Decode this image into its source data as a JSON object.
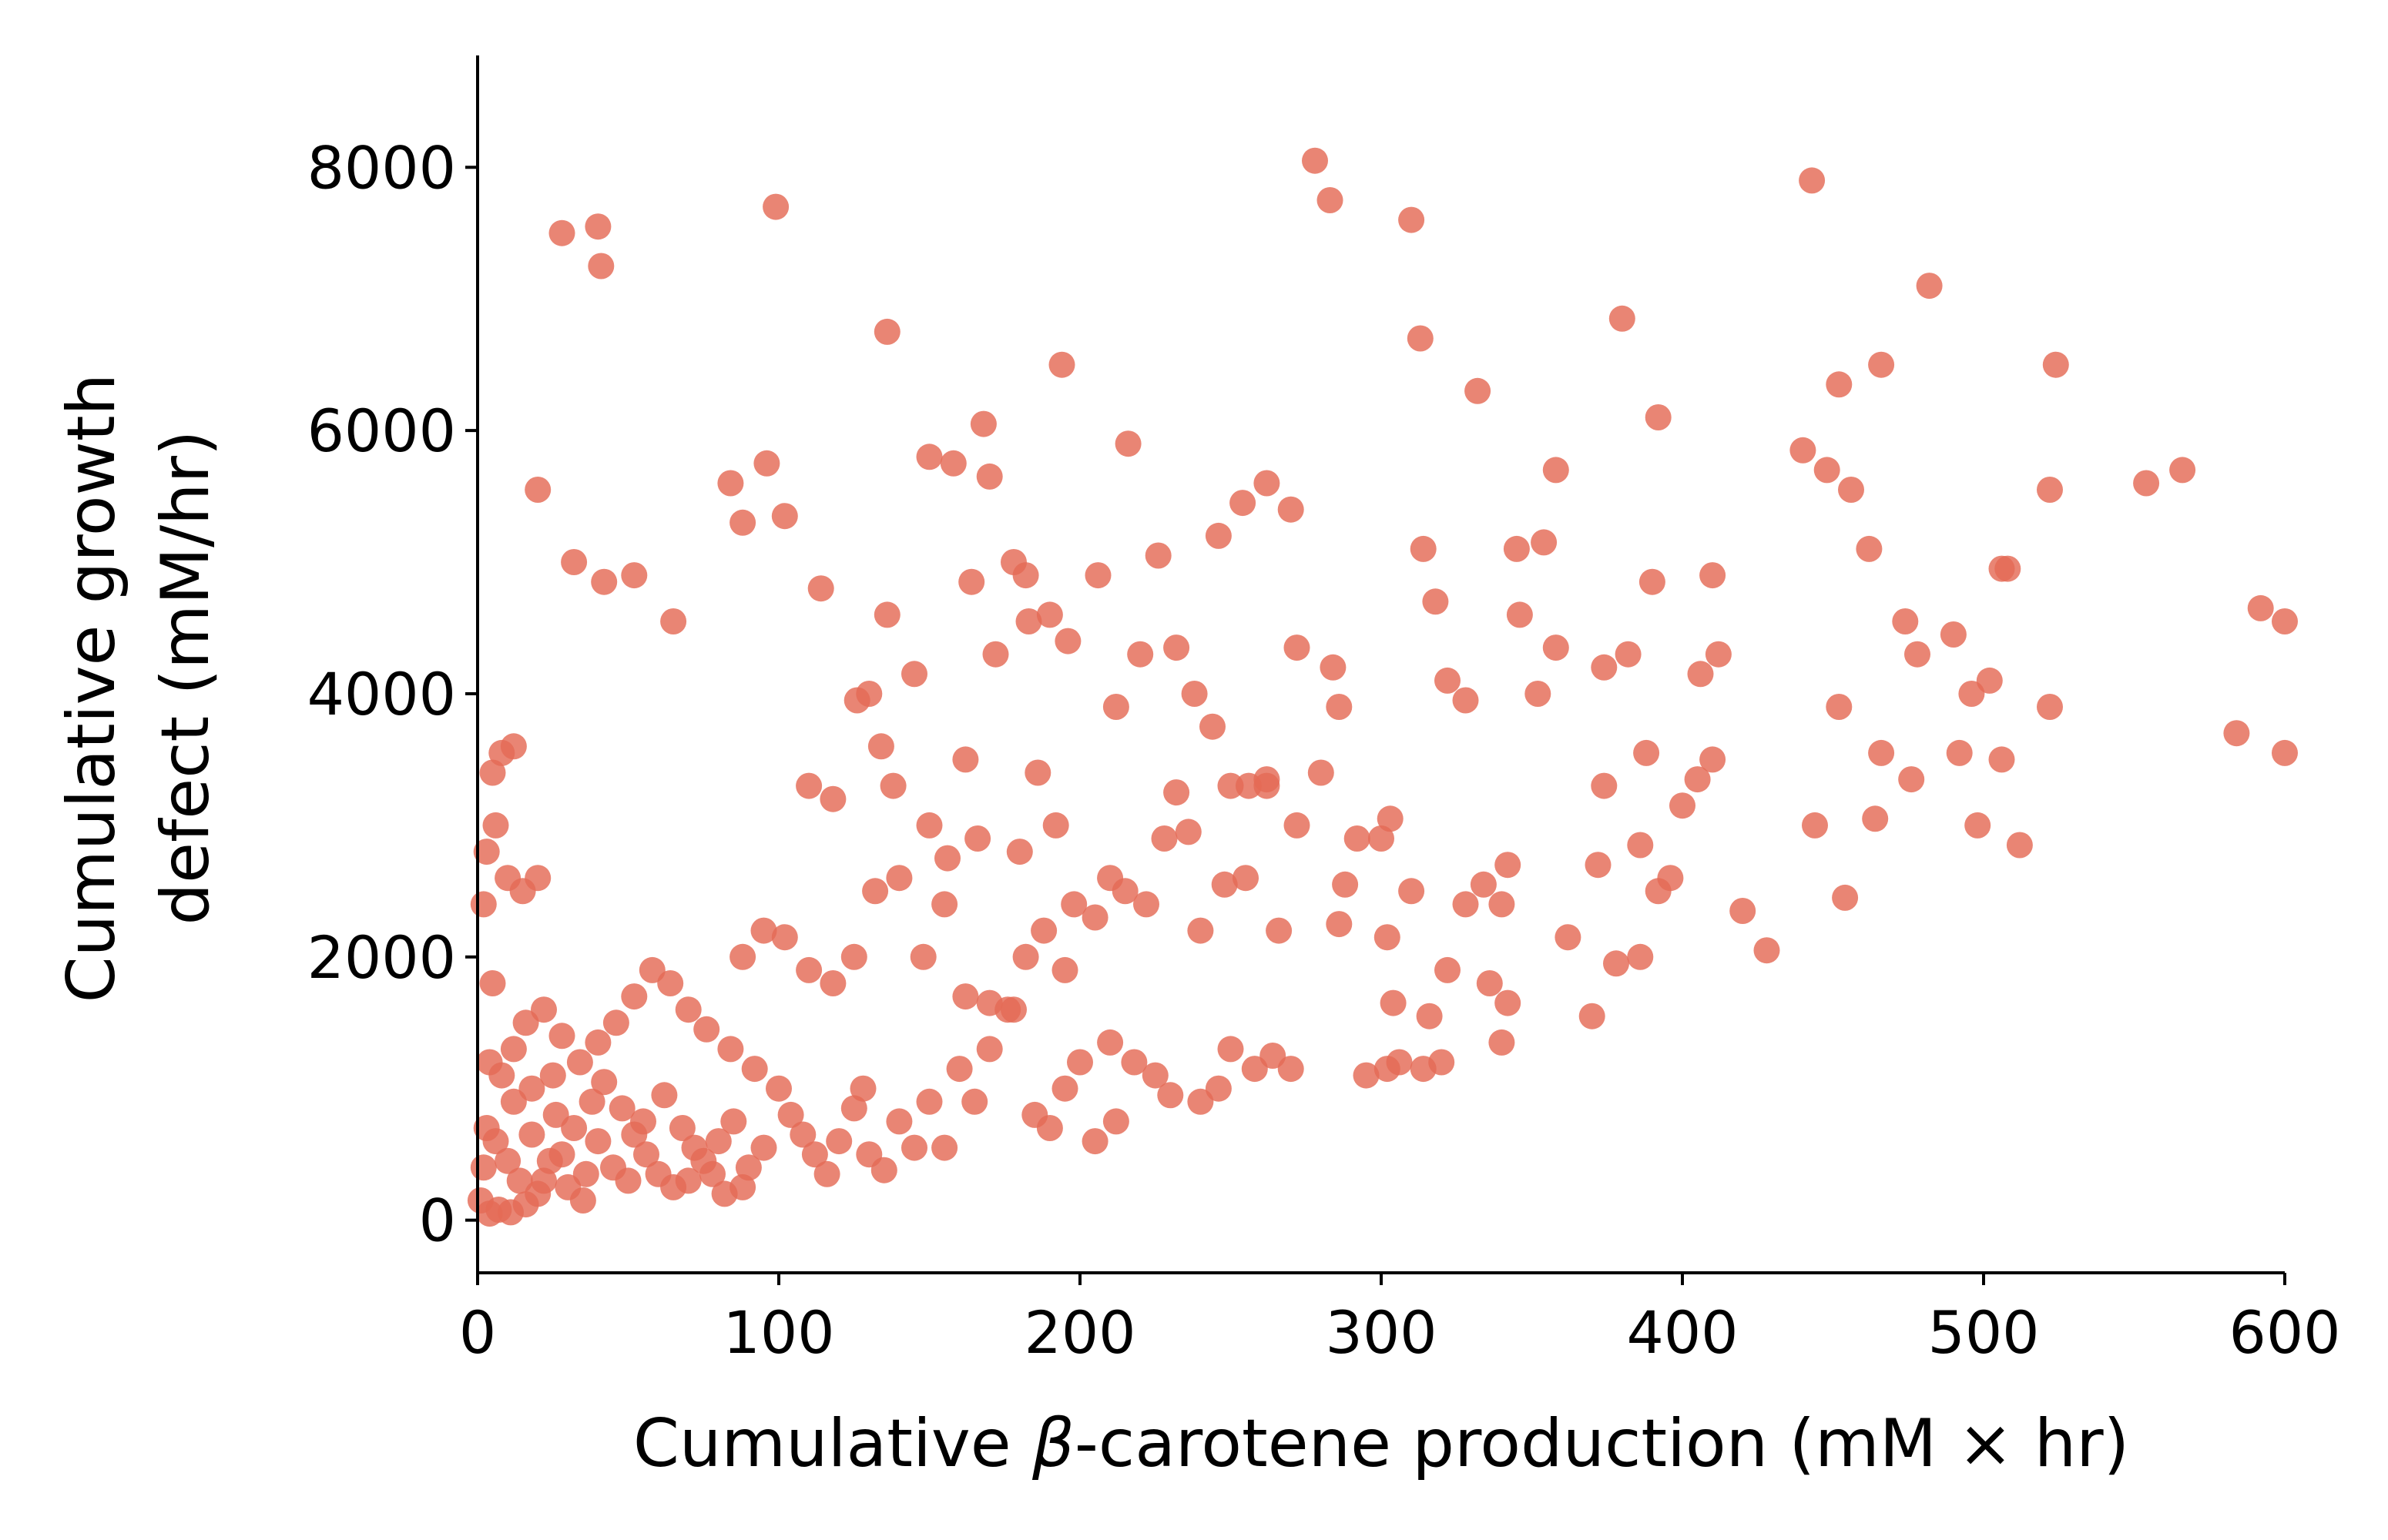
{
  "chart_data": {
    "type": "scatter",
    "xlabel": {
      "before": "Cumulative ",
      "symbol": "β",
      "after": "-carotene production (mM × hr)"
    },
    "ylabel": [
      "Cumulative growth",
      "defect (mM/hr)"
    ],
    "xlim": [
      0,
      600
    ],
    "ylim": [
      -400,
      8850
    ],
    "xticks": [
      "0",
      "100",
      "200",
      "300",
      "400",
      "500",
      "600"
    ],
    "yticks": [
      "0",
      "2000",
      "4000",
      "6000",
      "8000"
    ],
    "xtick_values": [
      0,
      100,
      200,
      300,
      400,
      500,
      600
    ],
    "ytick_values": [
      0,
      2000,
      4000,
      6000,
      8000
    ],
    "marker_color": "#e46a55",
    "marker_opacity": 0.82,
    "grid": false,
    "legend": "none",
    "spines": "left-bottom",
    "series": [
      {
        "points": [
          [
            1,
            150
          ],
          [
            2,
            400
          ],
          [
            3,
            700
          ],
          [
            4,
            1200
          ],
          [
            5,
            1800
          ],
          [
            2,
            2400
          ],
          [
            3,
            2800
          ],
          [
            5,
            3400
          ],
          [
            6,
            3000
          ],
          [
            8,
            3550
          ],
          [
            12,
            3600
          ],
          [
            10,
            2600
          ],
          [
            15,
            2500
          ],
          [
            20,
            2600
          ],
          [
            8,
            1100
          ],
          [
            12,
            900
          ],
          [
            18,
            1000
          ],
          [
            25,
            1100
          ],
          [
            6,
            600
          ],
          [
            10,
            450
          ],
          [
            14,
            300
          ],
          [
            20,
            200
          ],
          [
            30,
            250
          ],
          [
            35,
            150
          ],
          [
            4,
            50
          ],
          [
            7,
            80
          ],
          [
            11,
            60
          ],
          [
            16,
            120
          ],
          [
            22,
            300
          ],
          [
            28,
            500
          ],
          [
            32,
            700
          ],
          [
            38,
            900
          ],
          [
            42,
            1050
          ],
          [
            48,
            850
          ],
          [
            52,
            650
          ],
          [
            56,
            500
          ],
          [
            60,
            350
          ],
          [
            65,
            250
          ],
          [
            70,
            300
          ],
          [
            75,
            450
          ],
          [
            80,
            600
          ],
          [
            85,
            750
          ],
          [
            90,
            400
          ],
          [
            95,
            550
          ],
          [
            45,
            400
          ],
          [
            50,
            300
          ],
          [
            55,
            750
          ],
          [
            62,
            950
          ],
          [
            68,
            700
          ],
          [
            72,
            550
          ],
          [
            78,
            350
          ],
          [
            82,
            200
          ],
          [
            88,
            250
          ],
          [
            40,
            600
          ],
          [
            36,
            350
          ],
          [
            26,
            800
          ],
          [
            24,
            450
          ],
          [
            18,
            650
          ],
          [
            12,
            1300
          ],
          [
            16,
            1500
          ],
          [
            22,
            1600
          ],
          [
            28,
            1400
          ],
          [
            34,
            1200
          ],
          [
            40,
            1350
          ],
          [
            46,
            1500
          ],
          [
            52,
            1700
          ],
          [
            58,
            1900
          ],
          [
            64,
            1800
          ],
          [
            70,
            1600
          ],
          [
            76,
            1450
          ],
          [
            84,
            1300
          ],
          [
            92,
            1150
          ],
          [
            100,
            1000
          ],
          [
            104,
            800
          ],
          [
            108,
            650
          ],
          [
            112,
            500
          ],
          [
            116,
            350
          ],
          [
            120,
            600
          ],
          [
            125,
            850
          ],
          [
            128,
            1000
          ],
          [
            130,
            500
          ],
          [
            135,
            380
          ],
          [
            140,
            750
          ],
          [
            145,
            550
          ],
          [
            150,
            900
          ],
          [
            155,
            550
          ],
          [
            160,
            1150
          ],
          [
            165,
            900
          ],
          [
            170,
            1300
          ],
          [
            178,
            1600
          ],
          [
            185,
            800
          ],
          [
            190,
            700
          ],
          [
            195,
            1000
          ],
          [
            200,
            1200
          ],
          [
            205,
            600
          ],
          [
            210,
            1350
          ],
          [
            212,
            750
          ],
          [
            218,
            1200
          ],
          [
            225,
            1100
          ],
          [
            230,
            950
          ],
          [
            240,
            900
          ],
          [
            246,
            1000
          ],
          [
            250,
            1300
          ],
          [
            258,
            1150
          ],
          [
            264,
            1250
          ],
          [
            270,
            1150
          ],
          [
            88,
            2000
          ],
          [
            95,
            2200
          ],
          [
            102,
            2150
          ],
          [
            110,
            1900
          ],
          [
            118,
            1800
          ],
          [
            125,
            2000
          ],
          [
            132,
            2500
          ],
          [
            140,
            2600
          ],
          [
            148,
            2000
          ],
          [
            155,
            2400
          ],
          [
            162,
            1700
          ],
          [
            170,
            1650
          ],
          [
            176,
            1600
          ],
          [
            182,
            2000
          ],
          [
            188,
            2200
          ],
          [
            195,
            1900
          ],
          [
            205,
            2300
          ],
          [
            210,
            2600
          ],
          [
            215,
            2500
          ],
          [
            222,
            2400
          ],
          [
            228,
            2900
          ],
          [
            232,
            3250
          ],
          [
            236,
            2950
          ],
          [
            240,
            2200
          ],
          [
            248,
            2550
          ],
          [
            255,
            2600
          ],
          [
            262,
            3300
          ],
          [
            266,
            2200
          ],
          [
            272,
            3000
          ],
          [
            180,
            2800
          ],
          [
            186,
            3400
          ],
          [
            192,
            3000
          ],
          [
            198,
            2400
          ],
          [
            110,
            3300
          ],
          [
            118,
            3200
          ],
          [
            126,
            3950
          ],
          [
            134,
            3600
          ],
          [
            138,
            3300
          ],
          [
            145,
            4150
          ],
          [
            150,
            3000
          ],
          [
            156,
            2750
          ],
          [
            162,
            3500
          ],
          [
            166,
            2900
          ],
          [
            172,
            4300
          ],
          [
            178,
            5000
          ],
          [
            183,
            4550
          ],
          [
            190,
            4600
          ],
          [
            196,
            4400
          ],
          [
            206,
            4900
          ],
          [
            212,
            3900
          ],
          [
            220,
            4300
          ],
          [
            226,
            5050
          ],
          [
            232,
            4350
          ],
          [
            238,
            4000
          ],
          [
            244,
            3750
          ],
          [
            250,
            3300
          ],
          [
            256,
            3300
          ],
          [
            262,
            3350
          ],
          [
            272,
            4350
          ],
          [
            284,
            4200
          ],
          [
            286,
            3900
          ],
          [
            20,
            5550
          ],
          [
            32,
            5000
          ],
          [
            42,
            4850
          ],
          [
            52,
            4900
          ],
          [
            65,
            4550
          ],
          [
            84,
            5600
          ],
          [
            88,
            5300
          ],
          [
            96,
            5750
          ],
          [
            102,
            5350
          ],
          [
            114,
            4800
          ],
          [
            130,
            4000
          ],
          [
            136,
            4600
          ],
          [
            150,
            5800
          ],
          [
            158,
            5750
          ],
          [
            164,
            4850
          ],
          [
            168,
            6050
          ],
          [
            170,
            5650
          ],
          [
            182,
            4900
          ],
          [
            194,
            6500
          ],
          [
            216,
            5900
          ],
          [
            246,
            5200
          ],
          [
            254,
            5450
          ],
          [
            262,
            5600
          ],
          [
            270,
            5400
          ],
          [
            28,
            7500
          ],
          [
            40,
            7550
          ],
          [
            41,
            7250
          ],
          [
            99,
            7700
          ],
          [
            136,
            6750
          ],
          [
            278,
            8050
          ],
          [
            283,
            7750
          ],
          [
            310,
            7600
          ],
          [
            313,
            6700
          ],
          [
            332,
            6300
          ],
          [
            314,
            5100
          ],
          [
            318,
            4700
          ],
          [
            322,
            4100
          ],
          [
            328,
            3950
          ],
          [
            345,
            5100
          ],
          [
            354,
            5150
          ],
          [
            358,
            5700
          ],
          [
            352,
            4000
          ],
          [
            346,
            4600
          ],
          [
            358,
            4350
          ],
          [
            374,
            4200
          ],
          [
            382,
            4300
          ],
          [
            390,
            4850
          ],
          [
            380,
            6850
          ],
          [
            392,
            6100
          ],
          [
            410,
            4900
          ],
          [
            406,
            4150
          ],
          [
            412,
            4300
          ],
          [
            410,
            3500
          ],
          [
            405,
            3350
          ],
          [
            400,
            3150
          ],
          [
            388,
            3550
          ],
          [
            374,
            3300
          ],
          [
            372,
            2700
          ],
          [
            362,
            2150
          ],
          [
            340,
            2400
          ],
          [
            342,
            2700
          ],
          [
            334,
            2550
          ],
          [
            328,
            2400
          ],
          [
            322,
            1900
          ],
          [
            300,
            2900
          ],
          [
            303,
            3050
          ],
          [
            310,
            2500
          ],
          [
            292,
            2900
          ],
          [
            286,
            2250
          ],
          [
            280,
            3400
          ],
          [
            288,
            2550
          ],
          [
            295,
            1100
          ],
          [
            302,
            1150
          ],
          [
            306,
            1200
          ],
          [
            314,
            1150
          ],
          [
            320,
            1200
          ],
          [
            336,
            1800
          ],
          [
            342,
            1650
          ],
          [
            340,
            1350
          ],
          [
            302,
            2150
          ],
          [
            304,
            1650
          ],
          [
            316,
            1550
          ],
          [
            370,
            1550
          ],
          [
            378,
            1950
          ],
          [
            386,
            2000
          ],
          [
            386,
            2850
          ],
          [
            392,
            2500
          ],
          [
            396,
            2600
          ],
          [
            420,
            2350
          ],
          [
            428,
            2050
          ],
          [
            440,
            5850
          ],
          [
            443,
            7900
          ],
          [
            448,
            5700
          ],
          [
            452,
            6350
          ],
          [
            456,
            5550
          ],
          [
            462,
            5100
          ],
          [
            466,
            6500
          ],
          [
            474,
            4550
          ],
          [
            478,
            4300
          ],
          [
            482,
            7100
          ],
          [
            490,
            4450
          ],
          [
            496,
            4000
          ],
          [
            502,
            4100
          ],
          [
            506,
            4950
          ],
          [
            508,
            4950
          ],
          [
            522,
            5550
          ],
          [
            524,
            6500
          ],
          [
            522,
            3900
          ],
          [
            506,
            3500
          ],
          [
            512,
            2850
          ],
          [
            498,
            3000
          ],
          [
            492,
            3550
          ],
          [
            476,
            3350
          ],
          [
            466,
            3550
          ],
          [
            464,
            3050
          ],
          [
            452,
            3900
          ],
          [
            444,
            3000
          ],
          [
            454,
            2450
          ],
          [
            554,
            5600
          ],
          [
            566,
            5700
          ],
          [
            584,
            3700
          ],
          [
            592,
            4650
          ],
          [
            600,
            4550
          ],
          [
            600,
            3550
          ]
        ]
      }
    ]
  }
}
